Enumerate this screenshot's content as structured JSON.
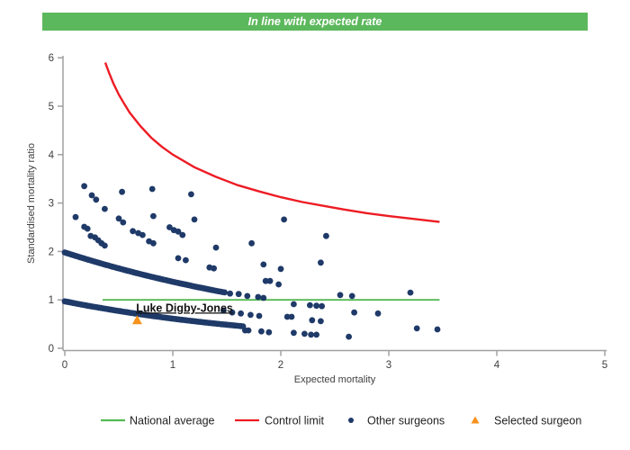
{
  "banner": {
    "text": "In line with expected rate",
    "bg_color": "#5cb85c",
    "text_color": "#ffffff"
  },
  "chart_data": {
    "type": "scatter",
    "title": "",
    "xlabel": "Expected mortality",
    "ylabel": "Standardised mortality ratio",
    "xlim": [
      0,
      5
    ],
    "ylim": [
      0,
      6
    ],
    "x_ticks": [
      0,
      1,
      2,
      3,
      4,
      5
    ],
    "y_ticks": [
      0,
      1,
      2,
      3,
      4,
      5,
      6
    ],
    "grid": false,
    "legend_position": "bottom",
    "axis_color": "#a0a0a0",
    "tick_label_color": "#3f3f3f",
    "annotation": {
      "text": "Luke Digby-Jones",
      "x": 0.66,
      "y": 0.85
    },
    "national_average": {
      "label": "National average",
      "color": "#53b953",
      "y": 1,
      "x_start": 0.35,
      "x_end": 3.47
    },
    "control_limit": {
      "label": "Control limit",
      "color": "#ed1c24",
      "points": [
        [
          0.375,
          5.9
        ],
        [
          0.41,
          5.69
        ],
        [
          0.45,
          5.47
        ],
        [
          0.5,
          5.24
        ],
        [
          0.55,
          5.05
        ],
        [
          0.6,
          4.87
        ],
        [
          0.7,
          4.59
        ],
        [
          0.8,
          4.35
        ],
        [
          0.9,
          4.16
        ],
        [
          1.0,
          4.0
        ],
        [
          1.2,
          3.74
        ],
        [
          1.4,
          3.54
        ],
        [
          1.6,
          3.37
        ],
        [
          1.8,
          3.24
        ],
        [
          2.0,
          3.12
        ],
        [
          2.2,
          3.02
        ],
        [
          2.4,
          2.94
        ],
        [
          2.6,
          2.86
        ],
        [
          2.8,
          2.79
        ],
        [
          3.0,
          2.73
        ],
        [
          3.2,
          2.68
        ],
        [
          3.47,
          2.61
        ]
      ]
    },
    "other_surgeons": {
      "label": "Other surgeons",
      "color": "#1f3a68",
      "dense_bands": [
        {
          "a": 0.97,
          "b": 0.46,
          "x_start": 0,
          "x_end": 1.65,
          "n": 85
        },
        {
          "a": 1.98,
          "b": 0.365,
          "x_start": 0,
          "x_end": 1.48,
          "n": 75
        }
      ],
      "scatter": [
        [
          0.18,
          3.35
        ],
        [
          0.25,
          3.16
        ],
        [
          0.29,
          3.07
        ],
        [
          0.37,
          2.88
        ],
        [
          0.53,
          3.23
        ],
        [
          0.81,
          3.29
        ],
        [
          1.17,
          3.18
        ],
        [
          0.1,
          2.71
        ],
        [
          0.18,
          2.51
        ],
        [
          0.21,
          2.47
        ],
        [
          0.24,
          2.32
        ],
        [
          0.28,
          2.29
        ],
        [
          0.31,
          2.23
        ],
        [
          0.34,
          2.17
        ],
        [
          0.37,
          2.12
        ],
        [
          0.5,
          2.68
        ],
        [
          0.54,
          2.6
        ],
        [
          0.63,
          2.42
        ],
        [
          0.68,
          2.38
        ],
        [
          0.72,
          2.34
        ],
        [
          0.78,
          2.21
        ],
        [
          0.82,
          2.17
        ],
        [
          0.82,
          2.73
        ],
        [
          0.97,
          2.5
        ],
        [
          1.01,
          2.44
        ],
        [
          1.05,
          2.41
        ],
        [
          1.09,
          2.34
        ],
        [
          1.2,
          2.66
        ],
        [
          1.4,
          2.08
        ],
        [
          1.73,
          2.17
        ],
        [
          2.03,
          2.66
        ],
        [
          2.42,
          2.32
        ],
        [
          2.37,
          1.77
        ],
        [
          1.84,
          1.73
        ],
        [
          2.0,
          1.64
        ],
        [
          1.05,
          1.86
        ],
        [
          1.12,
          1.82
        ],
        [
          1.34,
          1.67
        ],
        [
          1.38,
          1.65
        ],
        [
          1.86,
          1.39
        ],
        [
          1.9,
          1.39
        ],
        [
          1.98,
          1.32
        ],
        [
          2.55,
          1.1
        ],
        [
          2.66,
          1.08
        ],
        [
          3.2,
          1.15
        ],
        [
          1.53,
          1.13
        ],
        [
          1.61,
          1.12
        ],
        [
          1.69,
          1.08
        ],
        [
          1.79,
          1.06
        ],
        [
          1.84,
          1.04
        ],
        [
          2.12,
          0.91
        ],
        [
          2.27,
          0.89
        ],
        [
          2.33,
          0.88
        ],
        [
          2.38,
          0.87
        ],
        [
          1.47,
          0.78
        ],
        [
          1.55,
          0.74
        ],
        [
          1.63,
          0.72
        ],
        [
          1.72,
          0.69
        ],
        [
          1.8,
          0.67
        ],
        [
          2.06,
          0.65
        ],
        [
          2.1,
          0.65
        ],
        [
          2.29,
          0.58
        ],
        [
          2.37,
          0.56
        ],
        [
          2.68,
          0.74
        ],
        [
          2.9,
          0.72
        ],
        [
          1.67,
          0.37
        ],
        [
          1.7,
          0.37
        ],
        [
          1.82,
          0.35
        ],
        [
          1.89,
          0.33
        ],
        [
          2.12,
          0.32
        ],
        [
          2.22,
          0.3
        ],
        [
          2.28,
          0.28
        ],
        [
          2.33,
          0.28
        ],
        [
          2.63,
          0.24
        ],
        [
          3.26,
          0.41
        ],
        [
          3.45,
          0.39
        ]
      ]
    },
    "selected_surgeon": {
      "label": "Selected surgeon",
      "color": "#f6921e",
      "x": 0.67,
      "y": 0.58
    }
  },
  "legend": {
    "items": [
      {
        "label": "National average",
        "marker": "line",
        "color": "#53b953"
      },
      {
        "label": "Control limit",
        "marker": "line",
        "color": "#ed1c24"
      },
      {
        "label": "Other surgeons",
        "marker": "dot",
        "color": "#1f3a68"
      },
      {
        "label": "Selected surgeon",
        "marker": "triangle",
        "color": "#f6921e"
      }
    ]
  }
}
